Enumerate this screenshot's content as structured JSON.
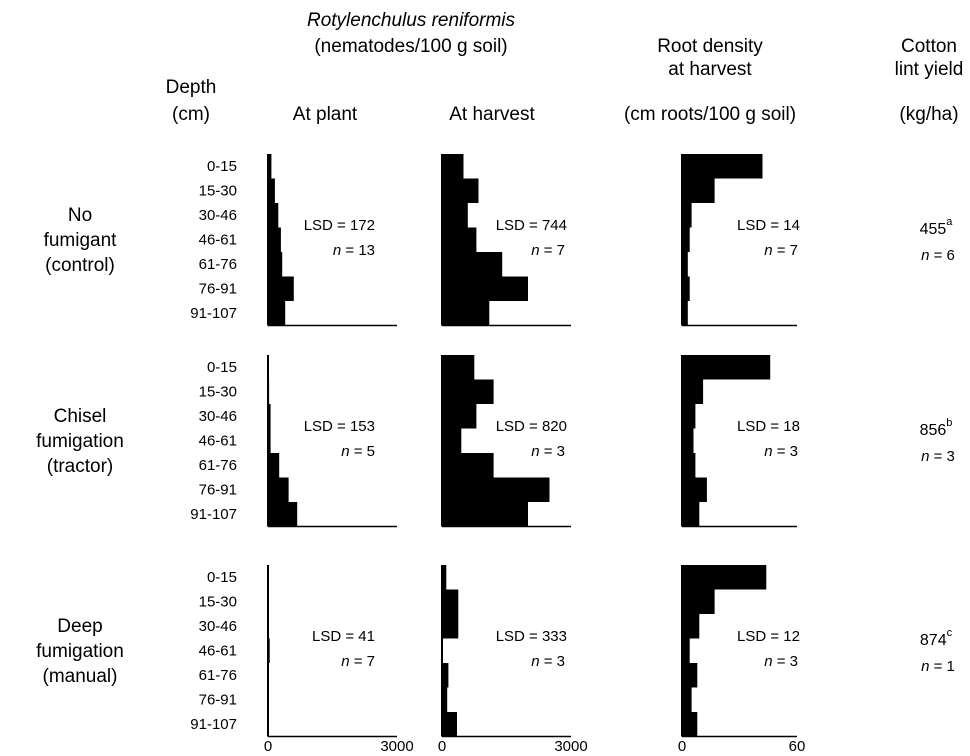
{
  "headers": {
    "species": "Rotylenchulus reniformis",
    "units": "(nematodes/100 g soil)",
    "depth_l1": "Depth",
    "depth_l2": "(cm)",
    "at_plant": "At plant",
    "at_harvest": "At harvest",
    "root_l1": "Root density",
    "root_l2": "at harvest",
    "root_l3": "(cm roots/100 g soil)",
    "yield_l1": "Cotton",
    "yield_l2": "lint yield",
    "yield_l3": "(kg/ha)"
  },
  "depths": [
    "0-15",
    "15-30",
    "30-46",
    "46-61",
    "61-76",
    "76-91",
    "91-107"
  ],
  "ticks": {
    "nem": [
      "0",
      "3000"
    ],
    "root": [
      "0",
      "60"
    ]
  },
  "chart_data": {
    "type": "bar",
    "orientation": "horizontal",
    "categories": [
      "0-15",
      "15-30",
      "30-46",
      "46-61",
      "61-76",
      "76-91",
      "91-107"
    ],
    "panels": [
      {
        "id": "at_plant",
        "xlim": [
          0,
          3000
        ]
      },
      {
        "id": "at_harvest",
        "xlim": [
          0,
          3000
        ]
      },
      {
        "id": "root",
        "xlim": [
          0,
          60
        ]
      }
    ],
    "treatments": [
      {
        "label": [
          "No",
          "fumigant",
          "(control)"
        ],
        "at_plant": {
          "values": [
            80,
            160,
            240,
            300,
            330,
            600,
            400
          ],
          "lsd": "LSD = 172",
          "n_label": "n",
          "n_value": " = 13"
        },
        "at_harvest": {
          "values": [
            500,
            850,
            600,
            800,
            1400,
            2000,
            1100
          ],
          "lsd": "LSD = 744",
          "n_label": "n",
          "n_value": " = 7"
        },
        "root": {
          "values": [
            42,
            17,
            5,
            4,
            3,
            4,
            3
          ],
          "lsd": "LSD = 14",
          "n_label": "n",
          "n_value": " = 7"
        },
        "yield": {
          "value": "455",
          "sup": "a",
          "n_label": "n",
          "n_value": " = 6"
        }
      },
      {
        "label": [
          "Chisel",
          "fumigation",
          "(tractor)"
        ],
        "at_plant": {
          "values": [
            20,
            25,
            60,
            60,
            260,
            480,
            680
          ],
          "lsd": "LSD = 153",
          "n_label": "n",
          "n_value": " = 5"
        },
        "at_harvest": {
          "values": [
            750,
            1200,
            800,
            450,
            1200,
            2500,
            2000
          ],
          "lsd": "LSD = 820",
          "n_label": "n",
          "n_value": " = 3"
        },
        "root": {
          "values": [
            46,
            11,
            7,
            6,
            7,
            13,
            9
          ],
          "lsd": "LSD = 18",
          "n_label": "n",
          "n_value": " = 3"
        },
        "yield": {
          "value": "856",
          "sup": "b",
          "n_label": "n",
          "n_value": " = 3"
        }
      },
      {
        "label": [
          "Deep",
          "fumigation",
          "(manual)"
        ],
        "at_plant": {
          "values": [
            15,
            0,
            0,
            40,
            15,
            10,
            0
          ],
          "lsd": "LSD = 41",
          "n_label": "n",
          "n_value": " = 7"
        },
        "at_harvest": {
          "values": [
            100,
            380,
            380,
            0,
            150,
            120,
            350
          ],
          "lsd": "LSD = 333",
          "n_label": "n",
          "n_value": " = 3"
        },
        "root": {
          "values": [
            44,
            17,
            9,
            4,
            8,
            5,
            8
          ],
          "lsd": "LSD = 12",
          "n_label": "n",
          "n_value": " = 3"
        },
        "yield": {
          "value": "874",
          "sup": "c",
          "n_label": "n",
          "n_value": " = 1"
        }
      }
    ]
  }
}
